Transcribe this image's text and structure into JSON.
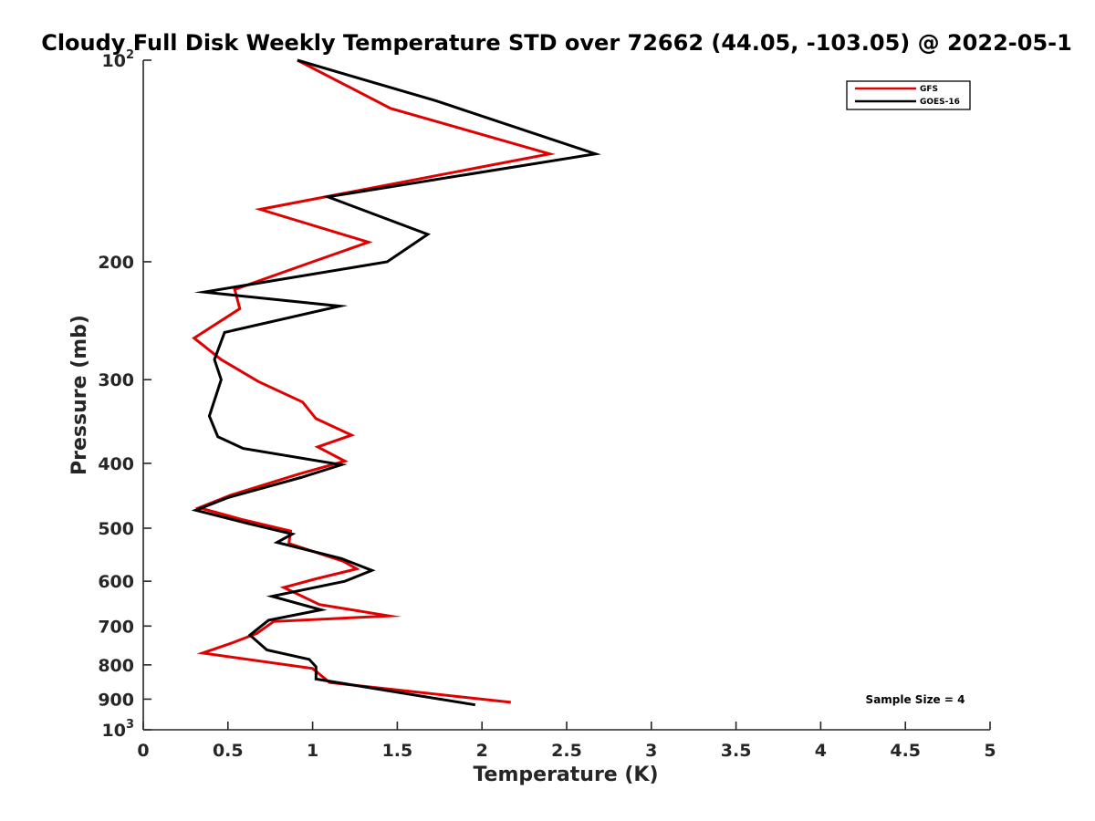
{
  "chart_data": {
    "type": "line",
    "title": "Cloudy Full Disk Weekly Temperature STD over 72662 (44.05, -103.05) @ 2022-05-1",
    "xlabel": "Temperature (K)",
    "ylabel": "Pressure (mb)",
    "xlim": [
      0,
      5
    ],
    "ylim": [
      100,
      1000
    ],
    "y_scale": "log",
    "y_reversed": true,
    "grid": false,
    "legend_position": "top-right",
    "x_ticks": [
      "0",
      "0.5",
      "1",
      "1.5",
      "2",
      "2.5",
      "3",
      "3.5",
      "4",
      "4.5",
      "5"
    ],
    "x_tick_values": [
      0,
      0.5,
      1,
      1.5,
      2,
      2.5,
      3,
      3.5,
      4,
      4.5,
      5
    ],
    "y_ticks": [
      {
        "value": 100,
        "base": "10",
        "exp": "2"
      },
      {
        "value": 200,
        "base": "200",
        "exp": ""
      },
      {
        "value": 300,
        "base": "300",
        "exp": ""
      },
      {
        "value": 400,
        "base": "400",
        "exp": ""
      },
      {
        "value": 500,
        "base": "500",
        "exp": ""
      },
      {
        "value": 600,
        "base": "600",
        "exp": ""
      },
      {
        "value": 700,
        "base": "700",
        "exp": ""
      },
      {
        "value": 800,
        "base": "800",
        "exp": ""
      },
      {
        "value": 900,
        "base": "900",
        "exp": ""
      },
      {
        "value": 1000,
        "base": "10",
        "exp": "3"
      }
    ],
    "annotation": "Sample Size = 4",
    "series": [
      {
        "name": "GFS",
        "color": "#e00000",
        "points": [
          [
            0.91,
            100
          ],
          [
            1.46,
            118
          ],
          [
            2.4,
            138
          ],
          [
            0.69,
            167
          ],
          [
            1.33,
            187
          ],
          [
            1.0,
            200
          ],
          [
            0.54,
            220
          ],
          [
            0.57,
            235
          ],
          [
            0.3,
            260
          ],
          [
            0.46,
            280
          ],
          [
            0.68,
            302
          ],
          [
            0.94,
            324
          ],
          [
            1.02,
            343
          ],
          [
            1.23,
            363
          ],
          [
            1.03,
            378
          ],
          [
            1.19,
            397
          ],
          [
            0.92,
            415
          ],
          [
            0.52,
            446
          ],
          [
            0.33,
            466
          ],
          [
            0.58,
            485
          ],
          [
            0.87,
            505
          ],
          [
            0.86,
            527
          ],
          [
            1.18,
            560
          ],
          [
            1.26,
            575
          ],
          [
            1.02,
            595
          ],
          [
            0.83,
            613
          ],
          [
            1.04,
            650
          ],
          [
            1.45,
            676
          ],
          [
            0.77,
            689
          ],
          [
            0.67,
            718
          ],
          [
            0.53,
            741
          ],
          [
            0.35,
            768
          ],
          [
            1.0,
            810
          ],
          [
            1.1,
            850
          ],
          [
            2.17,
            910
          ]
        ]
      },
      {
        "name": "GOES-16",
        "color": "#000000",
        "points": [
          [
            0.91,
            100
          ],
          [
            1.73,
            115
          ],
          [
            2.67,
            138
          ],
          [
            1.09,
            160
          ],
          [
            1.68,
            182
          ],
          [
            1.44,
            200
          ],
          [
            0.36,
            222
          ],
          [
            1.16,
            233
          ],
          [
            0.48,
            255
          ],
          [
            0.42,
            280
          ],
          [
            0.46,
            300
          ],
          [
            0.39,
            340
          ],
          [
            0.44,
            365
          ],
          [
            0.59,
            380
          ],
          [
            1.17,
            402
          ],
          [
            0.93,
            420
          ],
          [
            0.5,
            450
          ],
          [
            0.31,
            470
          ],
          [
            0.62,
            492
          ],
          [
            0.88,
            510
          ],
          [
            0.79,
            525
          ],
          [
            1.17,
            555
          ],
          [
            1.35,
            578
          ],
          [
            1.19,
            600
          ],
          [
            0.76,
            632
          ],
          [
            1.05,
            662
          ],
          [
            0.74,
            686
          ],
          [
            0.63,
            722
          ],
          [
            0.73,
            760
          ],
          [
            0.98,
            785
          ],
          [
            1.02,
            805
          ],
          [
            1.02,
            840
          ],
          [
            1.96,
            918
          ]
        ]
      }
    ]
  }
}
